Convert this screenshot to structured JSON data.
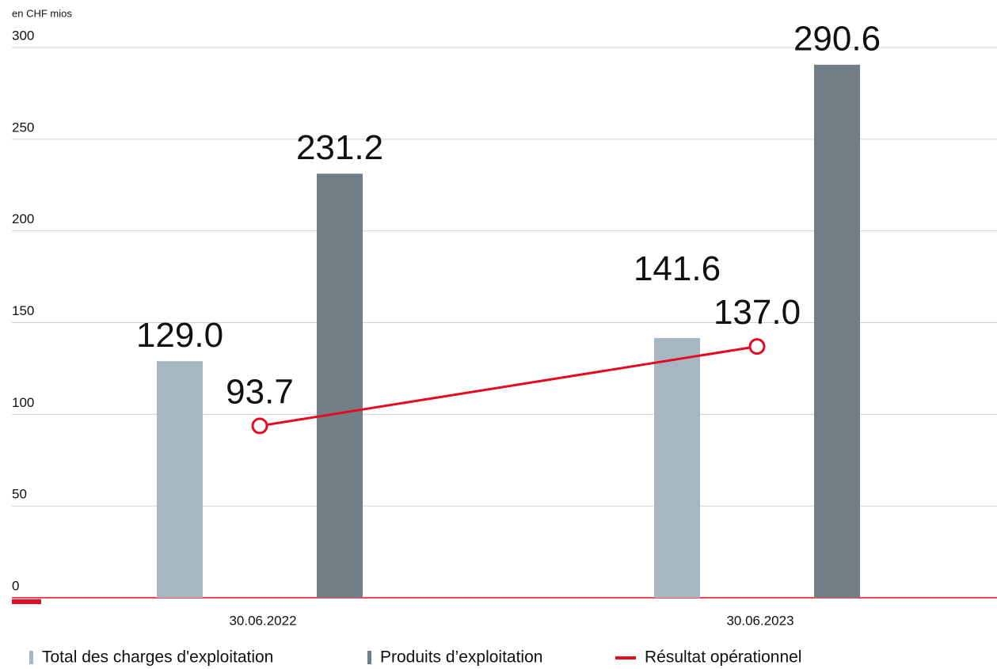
{
  "chart_data": {
    "type": "bar",
    "unit_label": "en CHF mios",
    "categories": [
      "30.06.2022",
      "30.06.2023"
    ],
    "series": [
      {
        "name": "Total des charges d'exploitation",
        "color": "#a7b7c1",
        "values": [
          129.0,
          141.6
        ],
        "value_labels": [
          "129.0",
          "141.6"
        ]
      },
      {
        "name": "Produits d’exploitation",
        "color": "#727e86",
        "values": [
          231.2,
          290.6
        ],
        "value_labels": [
          "231.2",
          "290.6"
        ]
      },
      {
        "name": "Résultat opérationnel",
        "color": "#e30a22",
        "type": "line",
        "values": [
          93.7,
          137.0
        ],
        "value_labels": [
          "93.7",
          "137.0"
        ]
      }
    ],
    "ylim": [
      0,
      300
    ],
    "yticks": [
      0,
      50,
      100,
      150,
      200,
      250,
      300
    ],
    "grid": true
  }
}
